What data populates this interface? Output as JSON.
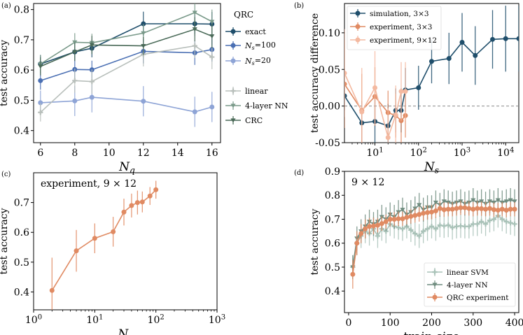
{
  "chart_data": [
    {
      "panel": "(a)",
      "type": "line",
      "xlabel": "N_q",
      "ylabel": "test accuracy",
      "xlim": [
        5.6,
        16.5
      ],
      "ylim": [
        0.36,
        0.82
      ],
      "xticks": [
        6,
        8,
        10,
        12,
        14,
        16
      ],
      "yticks": [
        0.4,
        0.5,
        0.6,
        0.7,
        0.8
      ],
      "legend_title": "QRC",
      "legend_position": "right",
      "series": [
        {
          "name": "exact",
          "color": "#1f4e6b",
          "marker": "circle",
          "x": [
            6,
            8,
            9,
            12,
            15,
            16
          ],
          "y": [
            0.62,
            0.66,
            0.672,
            0.753,
            0.753,
            0.752
          ],
          "err": [
            0.03,
            0.03,
            0.03,
            0.04,
            0.04,
            0.04
          ]
        },
        {
          "name": "N_s=100",
          "color": "#4a6fb3",
          "marker": "circle",
          "x": [
            6,
            8,
            9,
            12,
            15,
            16
          ],
          "y": [
            0.565,
            0.602,
            0.601,
            0.662,
            0.657,
            0.668
          ],
          "err": [
            0.03,
            0.03,
            0.03,
            0.04,
            0.04,
            0.04
          ]
        },
        {
          "name": "N_s=20",
          "color": "#8ea4d6",
          "marker": "circle",
          "x": [
            6,
            8,
            9,
            12,
            15,
            16
          ],
          "y": [
            0.492,
            0.498,
            0.51,
            0.497,
            0.462,
            0.478
          ],
          "err": [
            0.04,
            0.05,
            0.05,
            0.05,
            0.05,
            0.05
          ]
        },
        {
          "name": "linear",
          "color": "#b8bfbb",
          "marker": "plus",
          "x": [
            6,
            8,
            9,
            12,
            15,
            16
          ],
          "y": [
            0.46,
            0.565,
            0.562,
            0.652,
            0.68,
            0.643
          ],
          "err": [
            0.03,
            0.04,
            0.04,
            0.04,
            0.04,
            0.04
          ]
        },
        {
          "name": "4-layer NN",
          "color": "#7a9a8a",
          "marker": "triangle",
          "x": [
            6,
            8,
            9,
            12,
            15,
            16
          ],
          "y": [
            0.62,
            0.692,
            0.69,
            0.722,
            0.79,
            0.76
          ],
          "err": [
            0.03,
            0.03,
            0.03,
            0.03,
            0.04,
            0.04
          ]
        },
        {
          "name": "CRC",
          "color": "#4a6a58",
          "marker": "triangle",
          "x": [
            6,
            8,
            9,
            12,
            15,
            16
          ],
          "y": [
            0.612,
            0.66,
            0.683,
            0.68,
            0.735,
            0.712
          ],
          "err": [
            0.03,
            0.03,
            0.03,
            0.03,
            0.04,
            0.04
          ]
        }
      ]
    },
    {
      "panel": "(b)",
      "type": "line",
      "xscale": "log",
      "xlabel": "N_s",
      "ylabel": "test accuracy difference",
      "xlim": [
        2,
        20000
      ],
      "ylim": [
        -0.05,
        0.14
      ],
      "xticks": [
        10,
        100,
        1000,
        10000
      ],
      "xtick_labels": [
        "10^1",
        "10^2",
        "10^3",
        "10^4"
      ],
      "yticks": [
        -0.05,
        0.0,
        0.05,
        0.1
      ],
      "legend_position": "top-left",
      "reference_line": 0,
      "series": [
        {
          "name": "simulation, 3×3",
          "color": "#1f4e6b",
          "marker": "circle",
          "x": [
            2,
            5,
            10,
            20,
            30,
            40,
            50,
            100,
            200,
            500,
            1000,
            2000,
            5000,
            10000,
            20000
          ],
          "y": [
            0.014,
            -0.023,
            -0.021,
            -0.027,
            -0.006,
            -0.006,
            0.022,
            0.025,
            0.061,
            0.065,
            0.087,
            0.069,
            0.091,
            0.092,
            0.092
          ],
          "err": [
            0.02,
            0.03,
            0.03,
            0.03,
            0.03,
            0.03,
            0.03,
            0.03,
            0.03,
            0.035,
            0.04,
            0.04,
            0.04,
            0.045,
            0.045
          ]
        },
        {
          "name": "experiment, 3×3",
          "color": "#e08a62",
          "marker": "circle",
          "x": [
            2,
            5,
            10,
            20,
            30,
            40,
            50
          ],
          "y": [
            0.03,
            -0.006,
            0.013,
            -0.009,
            -0.013,
            -0.02,
            -0.013
          ],
          "err": [
            0.06,
            0.05,
            0.04,
            0.03,
            0.03,
            0.03,
            0.03
          ]
        },
        {
          "name": "experiment, 9×12",
          "color": "#f4b9a0",
          "marker": "circle",
          "x": [
            2,
            5,
            10,
            20,
            30,
            40,
            50
          ],
          "y": [
            0.045,
            -0.008,
            0.025,
            -0.043,
            -0.012,
            0.02,
            0.02
          ],
          "err": [
            0.06,
            0.06,
            0.05,
            0.04,
            0.04,
            0.04,
            0.04
          ]
        }
      ]
    },
    {
      "panel": "(c)",
      "type": "line",
      "xscale": "log",
      "xlabel": "N_s",
      "ylabel": "test accuracy",
      "annotation": "experiment, 9 × 12",
      "xlim": [
        1,
        1000
      ],
      "ylim": [
        0.34,
        0.8
      ],
      "xticks": [
        1,
        10,
        100,
        1000
      ],
      "xtick_labels": [
        "10^0",
        "10^1",
        "10^2",
        "10^3"
      ],
      "yticks": [
        0.4,
        0.5,
        0.6,
        0.7
      ],
      "series": [
        {
          "color": "#e08a62",
          "marker": "circle",
          "x": [
            2,
            5,
            10,
            20,
            30,
            40,
            50,
            60,
            80,
            100
          ],
          "y": [
            0.405,
            0.538,
            0.58,
            0.602,
            0.668,
            0.69,
            0.7,
            0.702,
            0.722,
            0.743
          ],
          "err": [
            0.11,
            0.07,
            0.05,
            0.05,
            0.045,
            0.04,
            0.04,
            0.035,
            0.03,
            0.03
          ]
        }
      ]
    },
    {
      "panel": "(d)",
      "type": "line",
      "xlabel": "train size",
      "ylabel": "test accuracy",
      "annotation": "9 × 12",
      "xlim": [
        -10,
        410
      ],
      "ylim": [
        0.31,
        0.9
      ],
      "xticks": [
        0,
        100,
        200,
        300,
        400
      ],
      "yticks": [
        0.4,
        0.5,
        0.6,
        0.7,
        0.8,
        0.9
      ],
      "legend_position": "bottom-right",
      "series": [
        {
          "name": "linear SVM",
          "color": "#a9c2b8",
          "marker": "plus",
          "x": [
            10,
            20,
            30,
            40,
            50,
            60,
            70,
            80,
            90,
            100,
            110,
            120,
            130,
            140,
            150,
            160,
            170,
            180,
            190,
            200,
            210,
            220,
            230,
            240,
            250,
            260,
            270,
            280,
            290,
            300,
            310,
            320,
            330,
            340,
            350,
            360,
            370,
            380,
            390,
            400
          ],
          "y": [
            0.5,
            0.6,
            0.63,
            0.65,
            0.64,
            0.66,
            0.63,
            0.66,
            0.65,
            0.68,
            0.67,
            0.665,
            0.66,
            0.67,
            0.655,
            0.64,
            0.63,
            0.65,
            0.66,
            0.67,
            0.66,
            0.675,
            0.672,
            0.675,
            0.665,
            0.67,
            0.672,
            0.67,
            0.67,
            0.68,
            0.68,
            0.69,
            0.68,
            0.695,
            0.7,
            0.715,
            0.7,
            0.69,
            0.685,
            0.68
          ],
          "err": [
            0.05,
            0.05,
            0.05,
            0.05,
            0.05,
            0.05,
            0.05,
            0.05,
            0.05,
            0.05,
            0.05,
            0.05,
            0.05,
            0.05,
            0.05,
            0.05,
            0.05,
            0.05,
            0.05,
            0.05,
            0.05,
            0.05,
            0.05,
            0.05,
            0.05,
            0.05,
            0.05,
            0.05,
            0.05,
            0.05,
            0.05,
            0.05,
            0.05,
            0.05,
            0.05,
            0.05,
            0.05,
            0.05,
            0.05,
            0.05
          ]
        },
        {
          "name": "4-layer NN",
          "color": "#6f8c7f",
          "marker": "triangle",
          "x": [
            10,
            20,
            30,
            40,
            50,
            60,
            70,
            80,
            90,
            100,
            110,
            120,
            130,
            140,
            150,
            160,
            170,
            180,
            190,
            200,
            210,
            220,
            230,
            240,
            250,
            260,
            270,
            280,
            290,
            300,
            310,
            320,
            330,
            340,
            350,
            360,
            370,
            380,
            390,
            400
          ],
          "y": [
            0.5,
            0.62,
            0.65,
            0.67,
            0.69,
            0.68,
            0.69,
            0.71,
            0.7,
            0.72,
            0.71,
            0.73,
            0.74,
            0.72,
            0.73,
            0.745,
            0.76,
            0.74,
            0.75,
            0.75,
            0.77,
            0.76,
            0.775,
            0.77,
            0.765,
            0.77,
            0.775,
            0.765,
            0.77,
            0.78,
            0.77,
            0.775,
            0.765,
            0.775,
            0.77,
            0.78,
            0.77,
            0.775,
            0.78,
            0.775
          ],
          "err": [
            0.05,
            0.05,
            0.05,
            0.05,
            0.05,
            0.05,
            0.05,
            0.05,
            0.05,
            0.05,
            0.05,
            0.05,
            0.05,
            0.05,
            0.05,
            0.05,
            0.05,
            0.05,
            0.05,
            0.05,
            0.05,
            0.05,
            0.05,
            0.05,
            0.05,
            0.05,
            0.05,
            0.05,
            0.05,
            0.05,
            0.05,
            0.05,
            0.05,
            0.05,
            0.05,
            0.05,
            0.05,
            0.05,
            0.05,
            0.05
          ]
        },
        {
          "name": "QRC experiment",
          "color": "#e08a62",
          "marker": "circle",
          "x": [
            10,
            20,
            30,
            40,
            50,
            60,
            70,
            80,
            90,
            100,
            110,
            120,
            130,
            140,
            150,
            160,
            170,
            180,
            190,
            200,
            210,
            220,
            230,
            240,
            250,
            260,
            270,
            280,
            290,
            300,
            310,
            320,
            330,
            340,
            350,
            360,
            370,
            380,
            390,
            400
          ],
          "y": [
            0.47,
            0.6,
            0.64,
            0.66,
            0.67,
            0.672,
            0.675,
            0.682,
            0.69,
            0.7,
            0.7,
            0.702,
            0.702,
            0.708,
            0.712,
            0.716,
            0.72,
            0.725,
            0.728,
            0.73,
            0.735,
            0.745,
            0.74,
            0.742,
            0.742,
            0.745,
            0.748,
            0.748,
            0.745,
            0.742,
            0.745,
            0.744,
            0.742,
            0.745,
            0.74,
            0.738,
            0.742,
            0.738,
            0.742,
            0.742
          ],
          "err": [
            0.06,
            0.05,
            0.04,
            0.04,
            0.035,
            0.035,
            0.03,
            0.03,
            0.03,
            0.03,
            0.03,
            0.03,
            0.03,
            0.03,
            0.03,
            0.03,
            0.03,
            0.03,
            0.03,
            0.03,
            0.03,
            0.03,
            0.03,
            0.03,
            0.03,
            0.03,
            0.03,
            0.03,
            0.03,
            0.03,
            0.03,
            0.03,
            0.03,
            0.03,
            0.03,
            0.03,
            0.03,
            0.03,
            0.03,
            0.03
          ]
        }
      ]
    }
  ]
}
